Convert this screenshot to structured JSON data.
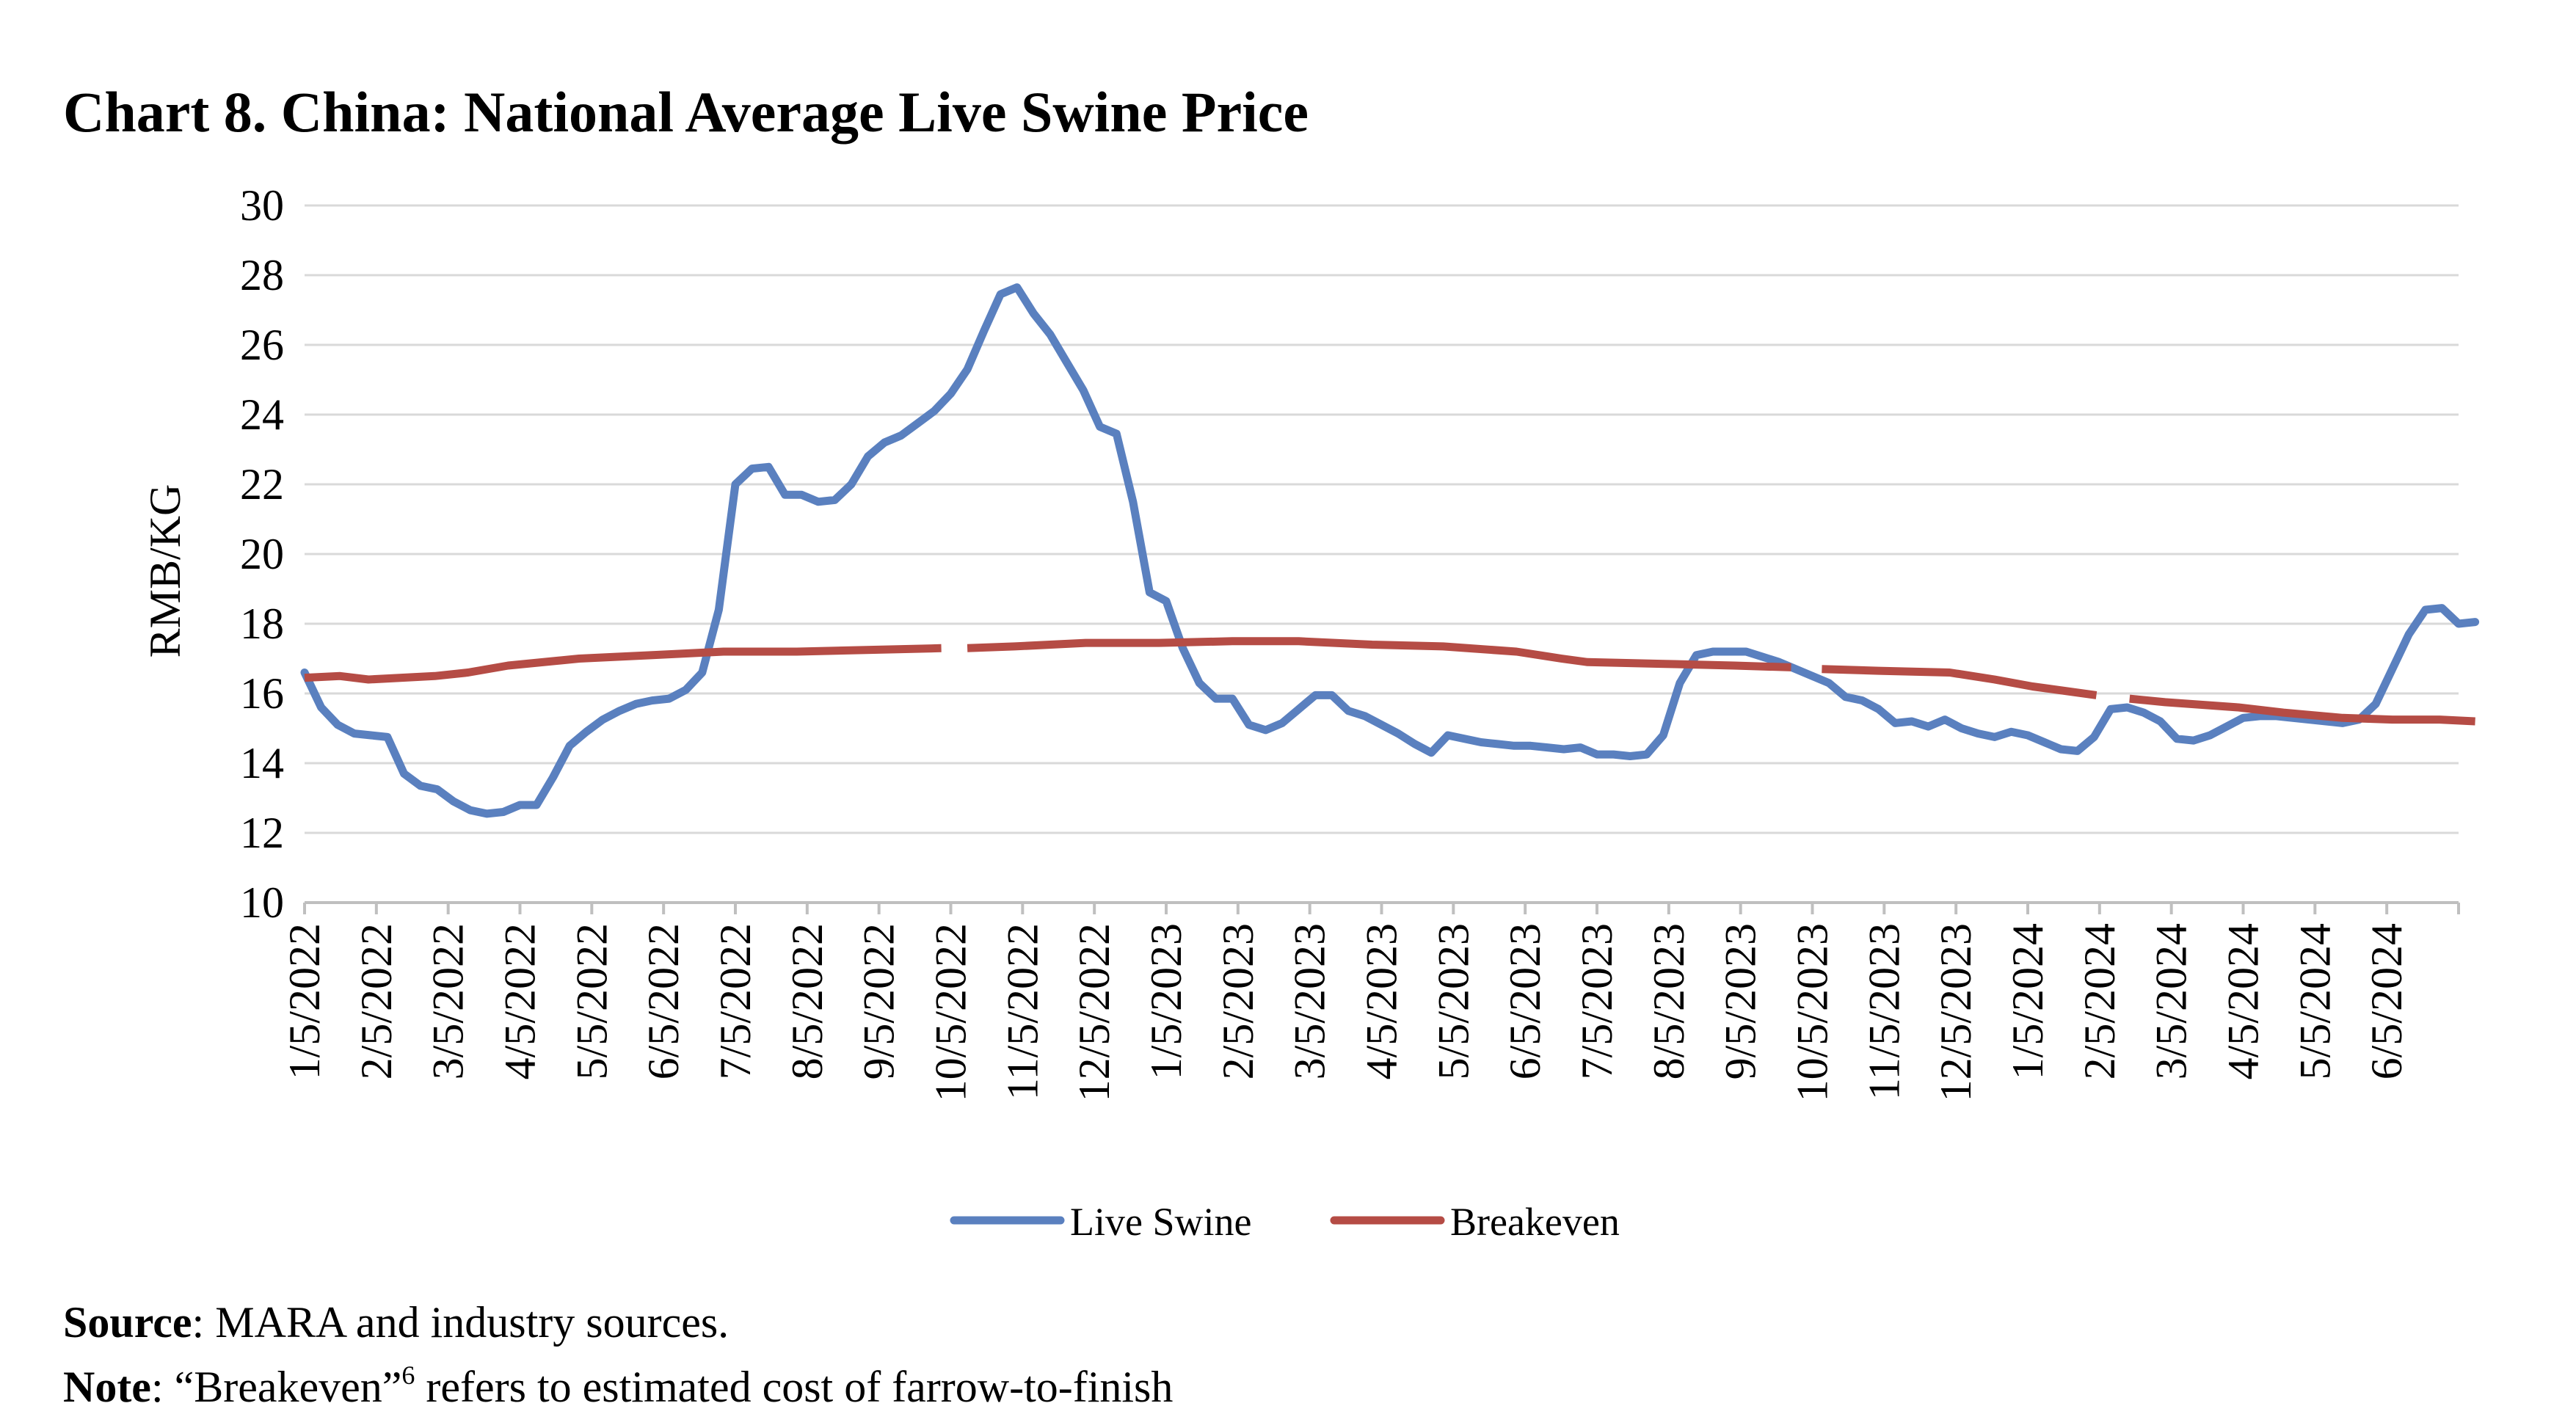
{
  "chart_data": {
    "type": "line",
    "title": "Chart 8. China: National Average Live Swine Price",
    "ylabel": "RMB/KG",
    "xlabel": "",
    "ylim": [
      10,
      30
    ],
    "yticks": [
      10,
      12,
      14,
      16,
      18,
      20,
      22,
      24,
      26,
      28,
      30
    ],
    "xlim": [
      "2022-01-05",
      "2024-07-03"
    ],
    "xtick_labels": [
      "1/5/2022",
      "2/5/2022",
      "3/5/2022",
      "4/5/2022",
      "5/5/2022",
      "6/5/2022",
      "7/5/2022",
      "8/5/2022",
      "9/5/2022",
      "10/5/2022",
      "11/5/2022",
      "12/5/2022",
      "1/5/2023",
      "2/5/2023",
      "3/5/2023",
      "4/5/2023",
      "5/5/2023",
      "6/5/2023",
      "7/5/2023",
      "8/5/2023",
      "9/5/2023",
      "10/5/2023",
      "11/5/2023",
      "12/5/2023",
      "1/5/2024",
      "2/5/2024",
      "3/5/2024",
      "4/5/2024",
      "5/5/2024",
      "6/5/2024"
    ],
    "grid": true,
    "legend": "bottom",
    "colors": {
      "Live Swine": "#5a80bf",
      "Breakeven": "#b54c45"
    },
    "series": [
      {
        "name": "Live Swine",
        "points": [
          [
            "2022-01-05",
            16.6
          ],
          [
            "2022-01-12",
            15.6
          ],
          [
            "2022-01-19",
            15.1
          ],
          [
            "2022-01-26",
            14.85
          ],
          [
            "2022-02-02",
            14.8
          ],
          [
            "2022-02-09",
            14.75
          ],
          [
            "2022-02-16",
            13.7
          ],
          [
            "2022-02-23",
            13.35
          ],
          [
            "2022-03-02",
            13.25
          ],
          [
            "2022-03-09",
            12.9
          ],
          [
            "2022-03-16",
            12.65
          ],
          [
            "2022-03-23",
            12.55
          ],
          [
            "2022-03-30",
            12.6
          ],
          [
            "2022-04-06",
            12.8
          ],
          [
            "2022-04-13",
            12.8
          ],
          [
            "2022-04-20",
            13.6
          ],
          [
            "2022-04-27",
            14.5
          ],
          [
            "2022-05-04",
            14.9
          ],
          [
            "2022-05-11",
            15.25
          ],
          [
            "2022-05-18",
            15.5
          ],
          [
            "2022-05-25",
            15.7
          ],
          [
            "2022-06-01",
            15.8
          ],
          [
            "2022-06-08",
            15.85
          ],
          [
            "2022-06-15",
            16.1
          ],
          [
            "2022-06-22",
            16.6
          ],
          [
            "2022-06-29",
            18.4
          ],
          [
            "2022-07-06",
            22.0
          ],
          [
            "2022-07-13",
            22.45
          ],
          [
            "2022-07-20",
            22.5
          ],
          [
            "2022-07-27",
            21.7
          ],
          [
            "2022-08-03",
            21.7
          ],
          [
            "2022-08-10",
            21.5
          ],
          [
            "2022-08-17",
            21.55
          ],
          [
            "2022-08-24",
            22.0
          ],
          [
            "2022-08-31",
            22.8
          ],
          [
            "2022-09-07",
            23.2
          ],
          [
            "2022-09-14",
            23.4
          ],
          [
            "2022-09-21",
            23.75
          ],
          [
            "2022-09-28",
            24.1
          ],
          [
            "2022-10-05",
            24.6
          ],
          [
            "2022-10-12",
            25.3
          ],
          [
            "2022-10-19",
            26.4
          ],
          [
            "2022-10-26",
            27.45
          ],
          [
            "2022-11-02",
            27.65
          ],
          [
            "2022-11-09",
            26.9
          ],
          [
            "2022-11-16",
            26.3
          ],
          [
            "2022-11-23",
            25.5
          ],
          [
            "2022-11-30",
            24.7
          ],
          [
            "2022-12-07",
            23.65
          ],
          [
            "2022-12-14",
            23.45
          ],
          [
            "2022-12-21",
            21.5
          ],
          [
            "2022-12-28",
            18.9
          ],
          [
            "2023-01-04",
            18.65
          ],
          [
            "2023-01-11",
            17.3
          ],
          [
            "2023-01-18",
            16.3
          ],
          [
            "2023-01-25",
            15.85
          ],
          [
            "2023-02-01",
            15.85
          ],
          [
            "2023-02-08",
            15.1
          ],
          [
            "2023-02-15",
            14.95
          ],
          [
            "2023-02-22",
            15.15
          ],
          [
            "2023-03-01",
            15.55
          ],
          [
            "2023-03-08",
            15.95
          ],
          [
            "2023-03-15",
            15.95
          ],
          [
            "2023-03-22",
            15.5
          ],
          [
            "2023-03-29",
            15.35
          ],
          [
            "2023-04-05",
            15.1
          ],
          [
            "2023-04-12",
            14.85
          ],
          [
            "2023-04-19",
            14.55
          ],
          [
            "2023-04-26",
            14.3
          ],
          [
            "2023-05-03",
            14.8
          ],
          [
            "2023-05-10",
            14.7
          ],
          [
            "2023-05-17",
            14.6
          ],
          [
            "2023-05-24",
            14.55
          ],
          [
            "2023-05-31",
            14.5
          ],
          [
            "2023-06-07",
            14.5
          ],
          [
            "2023-06-14",
            14.45
          ],
          [
            "2023-06-21",
            14.4
          ],
          [
            "2023-06-28",
            14.45
          ],
          [
            "2023-07-05",
            14.25
          ],
          [
            "2023-07-12",
            14.25
          ],
          [
            "2023-07-19",
            14.2
          ],
          [
            "2023-07-26",
            14.25
          ],
          [
            "2023-08-02",
            14.8
          ],
          [
            "2023-08-09",
            16.3
          ],
          [
            "2023-08-16",
            17.1
          ],
          [
            "2023-08-23",
            17.2
          ],
          [
            "2023-08-30",
            17.2
          ],
          [
            "2023-09-06",
            17.2
          ],
          [
            "2023-09-13",
            17.05
          ],
          [
            "2023-09-20",
            16.9
          ],
          [
            "2023-09-27",
            16.7
          ],
          [
            "2023-10-04",
            16.5
          ],
          [
            "2023-10-11",
            16.3
          ],
          [
            "2023-10-18",
            15.9
          ],
          [
            "2023-10-25",
            15.8
          ],
          [
            "2023-11-01",
            15.55
          ],
          [
            "2023-11-08",
            15.15
          ],
          [
            "2023-11-15",
            15.2
          ],
          [
            "2023-11-22",
            15.05
          ],
          [
            "2023-11-29",
            15.25
          ],
          [
            "2023-12-06",
            15.0
          ],
          [
            "2023-12-13",
            14.85
          ],
          [
            "2023-12-20",
            14.75
          ],
          [
            "2023-12-27",
            14.9
          ],
          [
            "2024-01-03",
            14.8
          ],
          [
            "2024-01-10",
            14.6
          ],
          [
            "2024-01-17",
            14.4
          ],
          [
            "2024-01-24",
            14.35
          ],
          [
            "2024-01-31",
            14.75
          ],
          [
            "2024-02-07",
            15.55
          ],
          [
            "2024-02-14",
            15.6
          ],
          [
            "2024-02-21",
            15.45
          ],
          [
            "2024-02-28",
            15.2
          ],
          [
            "2024-03-06",
            14.7
          ],
          [
            "2024-03-13",
            14.65
          ],
          [
            "2024-03-20",
            14.8
          ],
          [
            "2024-03-27",
            15.05
          ],
          [
            "2024-04-03",
            15.3
          ],
          [
            "2024-04-10",
            15.35
          ],
          [
            "2024-04-17",
            15.35
          ],
          [
            "2024-04-24",
            15.3
          ],
          [
            "2024-05-01",
            15.25
          ],
          [
            "2024-05-08",
            15.2
          ],
          [
            "2024-05-15",
            15.15
          ],
          [
            "2024-05-22",
            15.25
          ],
          [
            "2024-05-29",
            15.7
          ],
          [
            "2024-06-05",
            16.7
          ],
          [
            "2024-06-12",
            17.7
          ],
          [
            "2024-06-19",
            18.4
          ],
          [
            "2024-06-26",
            18.45
          ],
          [
            "2024-07-03",
            18.0
          ],
          [
            "2024-07-10",
            18.05
          ]
        ]
      },
      {
        "name": "Breakeven",
        "segments": [
          [
            [
              "2022-01-05",
              16.45
            ],
            [
              "2022-01-20",
              16.5
            ],
            [
              "2022-02-01",
              16.4
            ],
            [
              "2022-03-01",
              16.5
            ],
            [
              "2022-03-15",
              16.6
            ],
            [
              "2022-04-01",
              16.8
            ],
            [
              "2022-05-01",
              17.0
            ],
            [
              "2022-06-01",
              17.1
            ],
            [
              "2022-07-01",
              17.2
            ],
            [
              "2022-08-01",
              17.2
            ],
            [
              "2022-09-01",
              17.25
            ],
            [
              "2022-10-01",
              17.3
            ]
          ],
          [
            [
              "2022-10-12",
              17.3
            ],
            [
              "2022-11-01",
              17.35
            ],
            [
              "2022-12-01",
              17.45
            ],
            [
              "2023-01-01",
              17.45
            ],
            [
              "2023-02-01",
              17.5
            ],
            [
              "2023-03-01",
              17.5
            ],
            [
              "2023-04-01",
              17.4
            ],
            [
              "2023-05-01",
              17.35
            ],
            [
              "2023-06-01",
              17.2
            ],
            [
              "2023-06-20",
              17.0
            ],
            [
              "2023-07-01",
              16.9
            ],
            [
              "2023-08-01",
              16.85
            ],
            [
              "2023-09-01",
              16.8
            ],
            [
              "2023-09-25",
              16.75
            ]
          ],
          [
            [
              "2023-10-08",
              16.7
            ],
            [
              "2023-11-01",
              16.65
            ],
            [
              "2023-12-01",
              16.6
            ],
            [
              "2023-12-20",
              16.4
            ],
            [
              "2024-01-05",
              16.2
            ],
            [
              "2024-02-01",
              15.95
            ]
          ],
          [
            [
              "2024-02-15",
              15.85
            ],
            [
              "2024-03-01",
              15.75
            ],
            [
              "2024-04-01",
              15.6
            ],
            [
              "2024-04-20",
              15.45
            ],
            [
              "2024-05-15",
              15.3
            ],
            [
              "2024-06-05",
              15.25
            ],
            [
              "2024-06-25",
              15.25
            ],
            [
              "2024-07-10",
              15.2
            ]
          ]
        ]
      }
    ]
  },
  "footnotes": {
    "source_label": "Source",
    "source_text": ": MARA and industry sources.",
    "note_label": "Note",
    "note_text_before": ": “Breakeven”",
    "note_superscript": "6",
    "note_text_after": " refers to estimated cost of farrow-to-finish"
  }
}
